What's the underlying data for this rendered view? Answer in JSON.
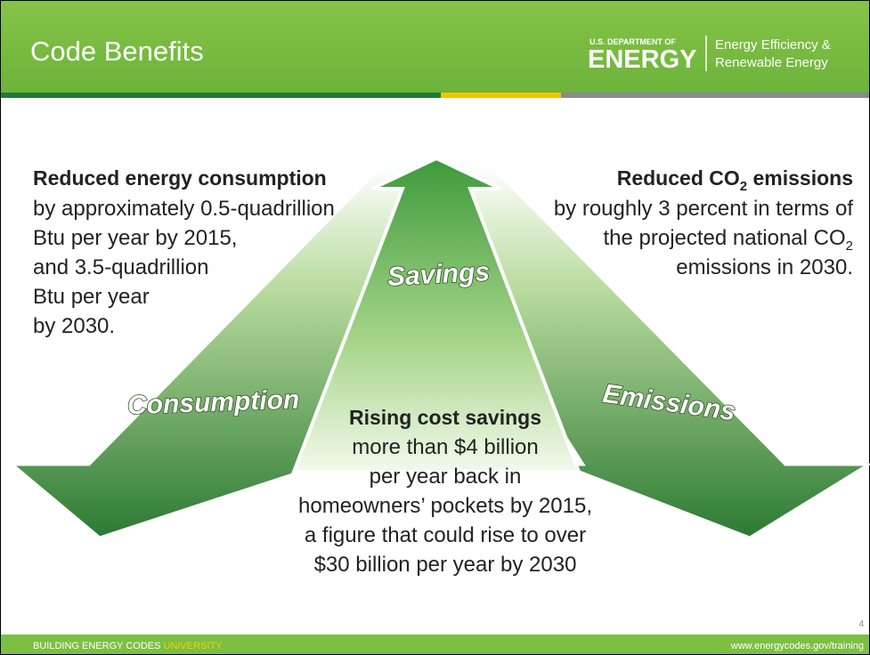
{
  "header": {
    "title": "Code Benefits",
    "logo": {
      "department": "U.S. DEPARTMENT OF",
      "agency": "ENERGY",
      "office_line1": "Energy Efficiency &",
      "office_line2": "Renewable Energy"
    }
  },
  "arrows": {
    "up": "Savings",
    "left": "Consumption",
    "right": "Emissions"
  },
  "left_block": {
    "heading": "Reduced energy consumption",
    "lines": [
      "by approximately 0.5-quadrillion",
      "Btu per year by 2015,",
      "and 3.5-quadrillion",
      "Btu per year",
      "by 2030."
    ]
  },
  "right_block": {
    "heading": {
      "before": "Reduced CO",
      "sub": "2",
      "after": " emissions"
    },
    "line1": "by roughly 3 percent in terms of",
    "line2": {
      "before": "the projected national CO",
      "sub": "2"
    },
    "line3": "emissions in 2030."
  },
  "center_block": {
    "heading": "Rising cost savings",
    "lines": [
      "more than $4 billion",
      "per year back in",
      "homeowners’ pockets by 2015,",
      "a figure that could rise to over",
      "$30 billion per year by 2030"
    ]
  },
  "page_number": "4",
  "footer": {
    "left": "BUILDING ENERGY CODES",
    "left_highlight": "UNIVERSITY",
    "right": "www.energycodes.gov/training"
  }
}
